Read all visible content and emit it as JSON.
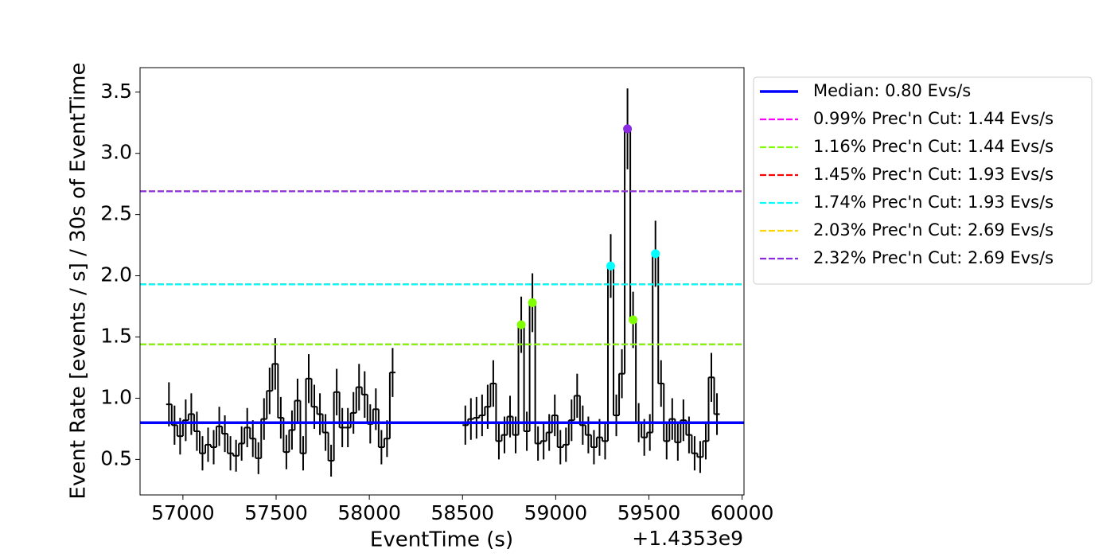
{
  "chart_data": {
    "type": "step-errorbar",
    "xlabel": "EventTime (s)",
    "ylabel": "Event Rate [events / s] / 30s of EventTime",
    "x_offset_label": "+1.4353e9",
    "xlim": [
      56770,
      60010
    ],
    "ylim": [
      0.21,
      3.7
    ],
    "xticks": [
      57000,
      57500,
      58000,
      58500,
      59000,
      59500,
      60000
    ],
    "yticks": [
      0.5,
      {
        "value": 1,
        "label": "1.0"
      },
      1.5,
      {
        "value": 2,
        "label": "2.0"
      },
      2.5,
      {
        "value": 3,
        "label": "3.0"
      },
      3.5
    ],
    "data": {
      "color": "#000000",
      "x": [
        56925,
        56955,
        56985,
        57015,
        57045,
        57075,
        57105,
        57135,
        57165,
        57195,
        57225,
        57255,
        57285,
        57315,
        57345,
        57375,
        57405,
        57435,
        57465,
        57495,
        57525,
        57555,
        57585,
        57615,
        57645,
        57675,
        57705,
        57735,
        57765,
        57795,
        57825,
        57855,
        57885,
        57915,
        57945,
        57975,
        58005,
        58035,
        58065,
        58095,
        58125,
        58515,
        58545,
        58575,
        58605,
        58635,
        58665,
        58695,
        58725,
        58755,
        58785,
        58815,
        58845,
        58875,
        58905,
        58935,
        58965,
        58995,
        59025,
        59055,
        59085,
        59115,
        59145,
        59175,
        59205,
        59235,
        59265,
        59295,
        59325,
        59355,
        59385,
        59415,
        59445,
        59475,
        59505,
        59535,
        59565,
        59595,
        59625,
        59655,
        59685,
        59715,
        59745,
        59775,
        59805,
        59835,
        59865
      ],
      "values": [
        0.95,
        0.78,
        0.69,
        0.82,
        0.87,
        0.73,
        0.55,
        0.62,
        0.6,
        0.77,
        0.71,
        0.55,
        0.53,
        0.63,
        0.76,
        0.67,
        0.51,
        0.83,
        1.06,
        1.28,
        0.84,
        0.56,
        0.74,
        0.98,
        0.55,
        1.16,
        0.93,
        0.87,
        0.72,
        0.49,
        1.05,
        0.76,
        0.76,
        0.88,
        1.09,
        1.03,
        0.79,
        0.91,
        0.6,
        0.67,
        1.21,
        0.78,
        0.83,
        0.84,
        0.86,
        0.93,
        1.12,
        0.65,
        0.7,
        0.85,
        0.7,
        1.6,
        0.73,
        1.78,
        0.63,
        0.65,
        0.72,
        0.86,
        0.6,
        0.62,
        0.82,
        1.02,
        0.78,
        0.7,
        0.6,
        0.68,
        0.65,
        2.08,
        0.86,
        1.2,
        3.2,
        1.64,
        0.8,
        0.68,
        0.72,
        2.18,
        1.12,
        0.65,
        0.83,
        0.64,
        0.82,
        0.7,
        0.55,
        0.52,
        0.65,
        1.17,
        0.87
      ],
      "errors": [
        0.18,
        0.16,
        0.15,
        0.17,
        0.17,
        0.16,
        0.14,
        0.14,
        0.14,
        0.16,
        0.15,
        0.14,
        0.13,
        0.14,
        0.16,
        0.15,
        0.13,
        0.17,
        0.19,
        0.21,
        0.17,
        0.14,
        0.16,
        0.18,
        0.14,
        0.2,
        0.18,
        0.17,
        0.15,
        0.13,
        0.19,
        0.16,
        0.16,
        0.17,
        0.19,
        0.19,
        0.16,
        0.17,
        0.14,
        0.15,
        0.2,
        0.16,
        0.17,
        0.17,
        0.17,
        0.18,
        0.19,
        0.15,
        0.15,
        0.17,
        0.15,
        0.23,
        0.16,
        0.24,
        0.14,
        0.15,
        0.15,
        0.17,
        0.14,
        0.14,
        0.17,
        0.18,
        0.16,
        0.15,
        0.14,
        0.15,
        0.15,
        0.26,
        0.17,
        0.2,
        0.33,
        0.23,
        0.16,
        0.15,
        0.15,
        0.27,
        0.19,
        0.15,
        0.17,
        0.15,
        0.17,
        0.15,
        0.14,
        0.13,
        0.15,
        0.2,
        0.17
      ]
    },
    "flags": {
      "x": [
        58815,
        58875,
        59295,
        59385,
        59415,
        59535
      ],
      "values": [
        1.6,
        1.78,
        2.08,
        3.2,
        1.64,
        2.18
      ],
      "colors": [
        "#7fff00",
        "#7fff00",
        "#00ffff",
        "#8a2be2",
        "#7fff00",
        "#00ffff"
      ]
    },
    "lines": [
      {
        "name": "Median: 0.80 Evs/s",
        "value": 0.8,
        "color": "#0000ff",
        "style": "solid"
      },
      {
        "name": "0.99% Prec'n Cut: 1.44 Evs/s",
        "value": 1.44,
        "color": "#ff00ff",
        "style": "dashed"
      },
      {
        "name": "1.16% Prec'n Cut: 1.44 Evs/s",
        "value": 1.44,
        "color": "#7fff00",
        "style": "dashed"
      },
      {
        "name": "1.45% Prec'n Cut: 1.93 Evs/s",
        "value": 1.93,
        "color": "#ff0000",
        "style": "dashed"
      },
      {
        "name": "1.74% Prec'n Cut: 1.93 Evs/s",
        "value": 1.93,
        "color": "#00ffff",
        "style": "dashed"
      },
      {
        "name": "2.03% Prec'n Cut: 2.69 Evs/s",
        "value": 2.69,
        "color": "#ffd700",
        "style": "dashed"
      },
      {
        "name": "2.32% Prec'n Cut: 2.69 Evs/s",
        "value": 2.69,
        "color": "#8a2be2",
        "style": "dashed"
      }
    ],
    "legend": "outside-upper-right"
  }
}
